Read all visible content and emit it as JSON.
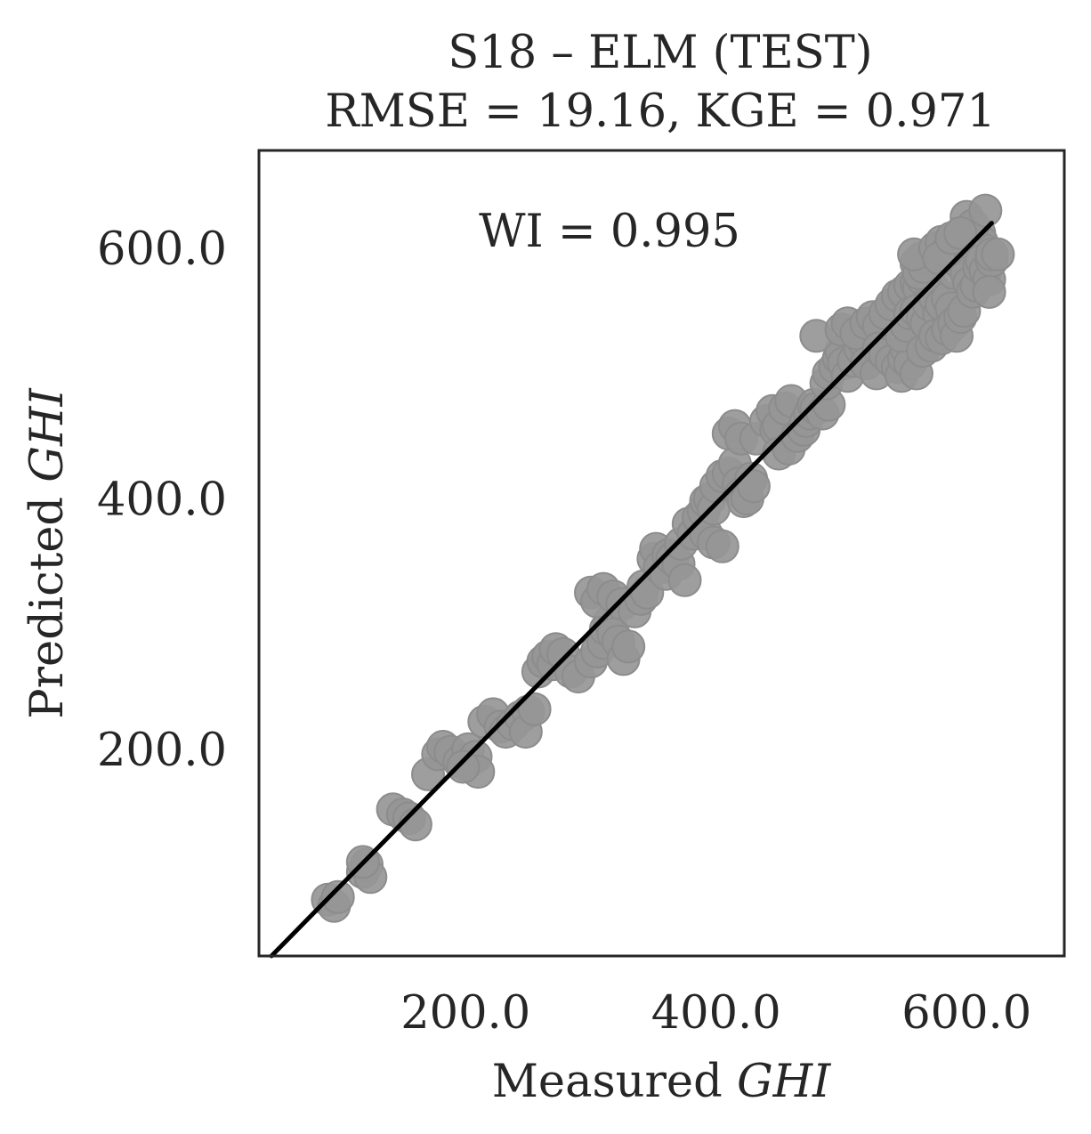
{
  "chart_data": {
    "type": "scatter",
    "title": "S18 – ELM (TEST)",
    "subtitle": "RMSE = 19.16, KGE = 0.971",
    "annotation": "WI = 0.995",
    "xlabel_prefix": "Measured ",
    "xlabel_italic": "GHI",
    "ylabel_prefix": "Predicted ",
    "ylabel_italic": "GHI",
    "xlim": [
      35,
      678
    ],
    "ylim": [
      35,
      678
    ],
    "xticks": [
      200,
      400,
      600
    ],
    "yticks": [
      200,
      400,
      600
    ],
    "tick_labels_x": [
      "200.0",
      "400.0",
      "600.0"
    ],
    "tick_labels_y": [
      "200.0",
      "400.0",
      "600.0"
    ],
    "grid": false,
    "fit_line": {
      "x": [
        45,
        620
      ],
      "y": [
        35,
        620
      ]
    },
    "colors": {
      "points": "#969696",
      "line": "#000000",
      "frame": "#262626",
      "text": "#262626"
    },
    "points": [
      [
        90,
        80
      ],
      [
        95,
        75
      ],
      [
        98,
        82
      ],
      [
        118,
        102
      ],
      [
        121,
        108
      ],
      [
        124,
        98
      ],
      [
        118,
        110
      ],
      [
        142,
        152
      ],
      [
        150,
        148
      ],
      [
        155,
        145
      ],
      [
        160,
        140
      ],
      [
        170,
        180
      ],
      [
        178,
        196
      ],
      [
        182,
        202
      ],
      [
        188,
        198
      ],
      [
        195,
        190
      ],
      [
        200,
        188
      ],
      [
        202,
        200
      ],
      [
        208,
        194
      ],
      [
        210,
        182
      ],
      [
        198,
        186
      ],
      [
        215,
        222
      ],
      [
        222,
        228
      ],
      [
        228,
        218
      ],
      [
        232,
        214
      ],
      [
        238,
        220
      ],
      [
        244,
        226
      ],
      [
        250,
        230
      ],
      [
        248,
        214
      ],
      [
        255,
        232
      ],
      [
        258,
        262
      ],
      [
        262,
        270
      ],
      [
        266,
        274
      ],
      [
        270,
        268
      ],
      [
        272,
        280
      ],
      [
        278,
        276
      ],
      [
        284,
        262
      ],
      [
        290,
        258
      ],
      [
        300,
        270
      ],
      [
        305,
        278
      ],
      [
        310,
        285
      ],
      [
        312,
        296
      ],
      [
        315,
        302
      ],
      [
        318,
        292
      ],
      [
        322,
        286
      ],
      [
        326,
        272
      ],
      [
        330,
        282
      ],
      [
        300,
        325
      ],
      [
        305,
        318
      ],
      [
        310,
        328
      ],
      [
        318,
        322
      ],
      [
        325,
        316
      ],
      [
        335,
        310
      ],
      [
        340,
        320
      ],
      [
        342,
        330
      ],
      [
        345,
        325
      ],
      [
        350,
        352
      ],
      [
        352,
        360
      ],
      [
        355,
        345
      ],
      [
        360,
        340
      ],
      [
        362,
        355
      ],
      [
        365,
        352
      ],
      [
        370,
        348
      ],
      [
        372,
        364
      ],
      [
        375,
        335
      ],
      [
        378,
        380
      ],
      [
        382,
        372
      ],
      [
        386,
        385
      ],
      [
        390,
        390
      ],
      [
        392,
        372
      ],
      [
        392,
        398
      ],
      [
        395,
        400
      ],
      [
        398,
        392
      ],
      [
        398,
        365
      ],
      [
        405,
        362
      ],
      [
        400,
        410
      ],
      [
        405,
        418
      ],
      [
        410,
        420
      ],
      [
        415,
        428
      ],
      [
        418,
        412
      ],
      [
        420,
        404
      ],
      [
        422,
        398
      ],
      [
        425,
        400
      ],
      [
        428,
        416
      ],
      [
        430,
        410
      ],
      [
        410,
        452
      ],
      [
        415,
        458
      ],
      [
        420,
        448
      ],
      [
        432,
        448
      ],
      [
        440,
        462
      ],
      [
        445,
        470
      ],
      [
        448,
        455
      ],
      [
        450,
        458
      ],
      [
        455,
        472
      ],
      [
        460,
        478
      ],
      [
        450,
        436
      ],
      [
        458,
        440
      ],
      [
        465,
        450
      ],
      [
        470,
        455
      ],
      [
        472,
        462
      ],
      [
        475,
        468
      ],
      [
        478,
        475
      ],
      [
        480,
        472
      ],
      [
        485,
        468
      ],
      [
        490,
        475
      ],
      [
        488,
        492
      ],
      [
        490,
        500
      ],
      [
        495,
        505
      ],
      [
        498,
        512
      ],
      [
        500,
        518
      ],
      [
        502,
        508
      ],
      [
        505,
        498
      ],
      [
        510,
        510
      ],
      [
        515,
        520
      ],
      [
        518,
        525
      ],
      [
        480,
        530
      ],
      [
        500,
        535
      ],
      [
        505,
        540
      ],
      [
        512,
        532
      ],
      [
        520,
        540
      ],
      [
        525,
        545
      ],
      [
        530,
        538
      ],
      [
        535,
        548
      ],
      [
        520,
        508
      ],
      [
        528,
        500
      ],
      [
        530,
        520
      ],
      [
        535,
        515
      ],
      [
        540,
        510
      ],
      [
        545,
        505
      ],
      [
        548,
        498
      ],
      [
        550,
        512
      ],
      [
        552,
        520
      ],
      [
        555,
        508
      ],
      [
        548,
        530
      ],
      [
        552,
        538
      ],
      [
        540,
        555
      ],
      [
        545,
        562
      ],
      [
        550,
        565
      ],
      [
        555,
        570
      ],
      [
        560,
        572
      ],
      [
        562,
        568
      ],
      [
        565,
        575
      ],
      [
        568,
        580
      ],
      [
        570,
        575
      ],
      [
        572,
        570
      ],
      [
        555,
        548
      ],
      [
        560,
        550
      ],
      [
        565,
        545
      ],
      [
        568,
        540
      ],
      [
        570,
        555
      ],
      [
        575,
        560
      ],
      [
        578,
        548
      ],
      [
        580,
        555
      ],
      [
        585,
        560
      ],
      [
        588,
        552
      ],
      [
        560,
        500
      ],
      [
        565,
        518
      ],
      [
        572,
        522
      ],
      [
        575,
        530
      ],
      [
        580,
        528
      ],
      [
        585,
        535
      ],
      [
        590,
        540
      ],
      [
        592,
        530
      ],
      [
        595,
        545
      ],
      [
        598,
        550
      ],
      [
        590,
        580
      ],
      [
        592,
        590
      ],
      [
        595,
        598
      ],
      [
        600,
        592
      ],
      [
        602,
        605
      ],
      [
        605,
        610
      ],
      [
        608,
        600
      ],
      [
        610,
        612
      ],
      [
        612,
        605
      ],
      [
        615,
        598
      ],
      [
        600,
        580
      ],
      [
        602,
        572
      ],
      [
        605,
        565
      ],
      [
        608,
        570
      ],
      [
        610,
        585
      ],
      [
        612,
        590
      ],
      [
        615,
        582
      ],
      [
        618,
        575
      ],
      [
        620,
        590
      ],
      [
        618,
        565
      ],
      [
        560,
        588
      ],
      [
        562,
        580
      ],
      [
        564,
        592
      ],
      [
        566,
        585
      ],
      [
        558,
        595
      ],
      [
        575,
        600
      ],
      [
        580,
        605
      ],
      [
        585,
        598
      ],
      [
        578,
        592
      ],
      [
        588,
        608
      ],
      [
        600,
        625
      ],
      [
        605,
        618
      ],
      [
        595,
        612
      ],
      [
        615,
        630
      ],
      [
        620,
        595
      ],
      [
        625,
        595
      ]
    ]
  }
}
